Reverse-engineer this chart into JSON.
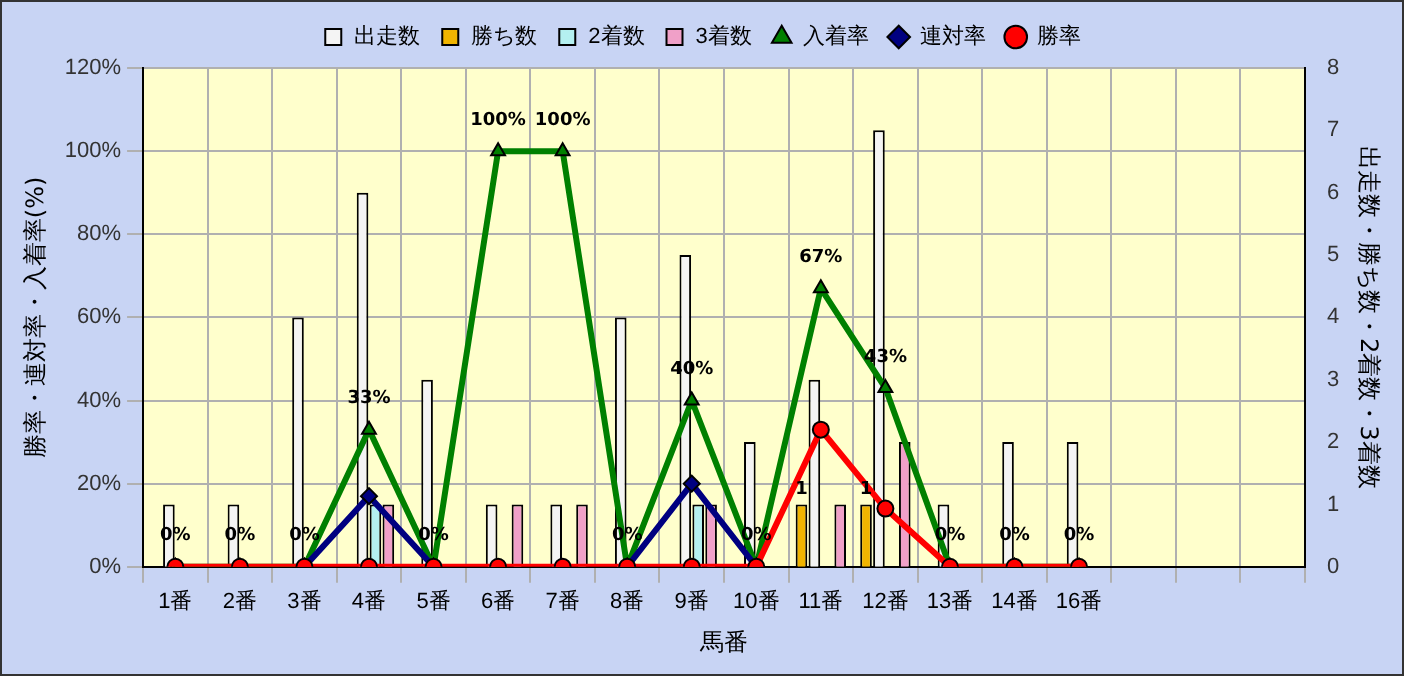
{
  "chart_data": {
    "type": "bar",
    "xlabel": "馬番",
    "ylabel": "勝率・連対率・入着率(%)",
    "y2label": "出走数・勝ち数・2着数・3着数",
    "categories": [
      "1番",
      "2番",
      "3番",
      "4番",
      "5番",
      "6番",
      "7番",
      "8番",
      "9番",
      "10番",
      "11番",
      "12番",
      "13番",
      "14番",
      "16番",
      null,
      null,
      null
    ],
    "series": [
      {
        "name": "出走数",
        "axis": "y2",
        "color": "#f4f4f4",
        "values": [
          1,
          1,
          4,
          6,
          3,
          1,
          1,
          4,
          5,
          2,
          3,
          7,
          1,
          2,
          2,
          null,
          null,
          null
        ]
      },
      {
        "name": "勝ち数",
        "axis": "y2",
        "color": "#f0b400",
        "values": [
          0,
          0,
          0,
          0,
          0,
          0,
          0,
          0,
          0,
          0,
          1,
          1,
          0,
          0,
          0,
          null,
          null,
          null
        ],
        "value_labels": [
          null,
          null,
          null,
          null,
          null,
          null,
          null,
          null,
          null,
          null,
          "1",
          "1",
          null,
          null,
          null,
          null,
          null,
          null
        ]
      },
      {
        "name": "2着数",
        "axis": "y2",
        "color": "#b4f0f0",
        "values": [
          0,
          0,
          0,
          1,
          0,
          0,
          0,
          0,
          1,
          0,
          0,
          0,
          0,
          0,
          0,
          null,
          null,
          null
        ]
      },
      {
        "name": "3着数",
        "axis": "y2",
        "color": "#f0a0c8",
        "values": [
          0,
          0,
          0,
          1,
          0,
          1,
          1,
          0,
          1,
          0,
          1,
          2,
          0,
          0,
          0,
          null,
          null,
          null
        ]
      },
      {
        "name": "入着率",
        "type": "line",
        "axis": "y",
        "color": "#008000",
        "marker": "triangle",
        "values": [
          0,
          0,
          0,
          33,
          0,
          100,
          100,
          0,
          40,
          0,
          67,
          43,
          0,
          0,
          0,
          null,
          null,
          null
        ],
        "value_labels": [
          "0%",
          "0%",
          "0%",
          "33%",
          "0%",
          "100%",
          "100%",
          "0%",
          "40%",
          "0%",
          "67%",
          "43%",
          "0%",
          "0%",
          "0%",
          null,
          null,
          null
        ]
      },
      {
        "name": "連対率",
        "type": "line",
        "axis": "y",
        "color": "#000080",
        "marker": "diamond",
        "values": [
          null,
          null,
          0,
          17,
          0,
          null,
          null,
          0,
          20,
          0,
          null,
          null,
          null,
          null,
          null,
          null,
          null,
          null
        ]
      },
      {
        "name": "勝率",
        "type": "line",
        "axis": "y",
        "color": "#ff0000",
        "marker": "circle",
        "values": [
          0,
          0,
          0,
          0,
          0,
          0,
          0,
          0,
          0,
          0,
          33,
          14,
          0,
          0,
          0,
          null,
          null,
          null
        ]
      }
    ],
    "ylim": [
      0,
      120
    ],
    "yticks": [
      {
        "value": 0,
        "label": "0%"
      },
      {
        "value": 20,
        "label": "20%"
      },
      {
        "value": 40,
        "label": "40%"
      },
      {
        "value": 60,
        "label": "60%"
      },
      {
        "value": 80,
        "label": "80%"
      },
      {
        "value": 100,
        "label": "100%"
      },
      {
        "value": 120,
        "label": "120%"
      }
    ],
    "y2lim": [
      0,
      8
    ],
    "y2ticks": [
      0,
      1,
      2,
      3,
      4,
      5,
      6,
      7,
      8
    ],
    "grid": true,
    "legend": "top",
    "line_style": "solid"
  }
}
